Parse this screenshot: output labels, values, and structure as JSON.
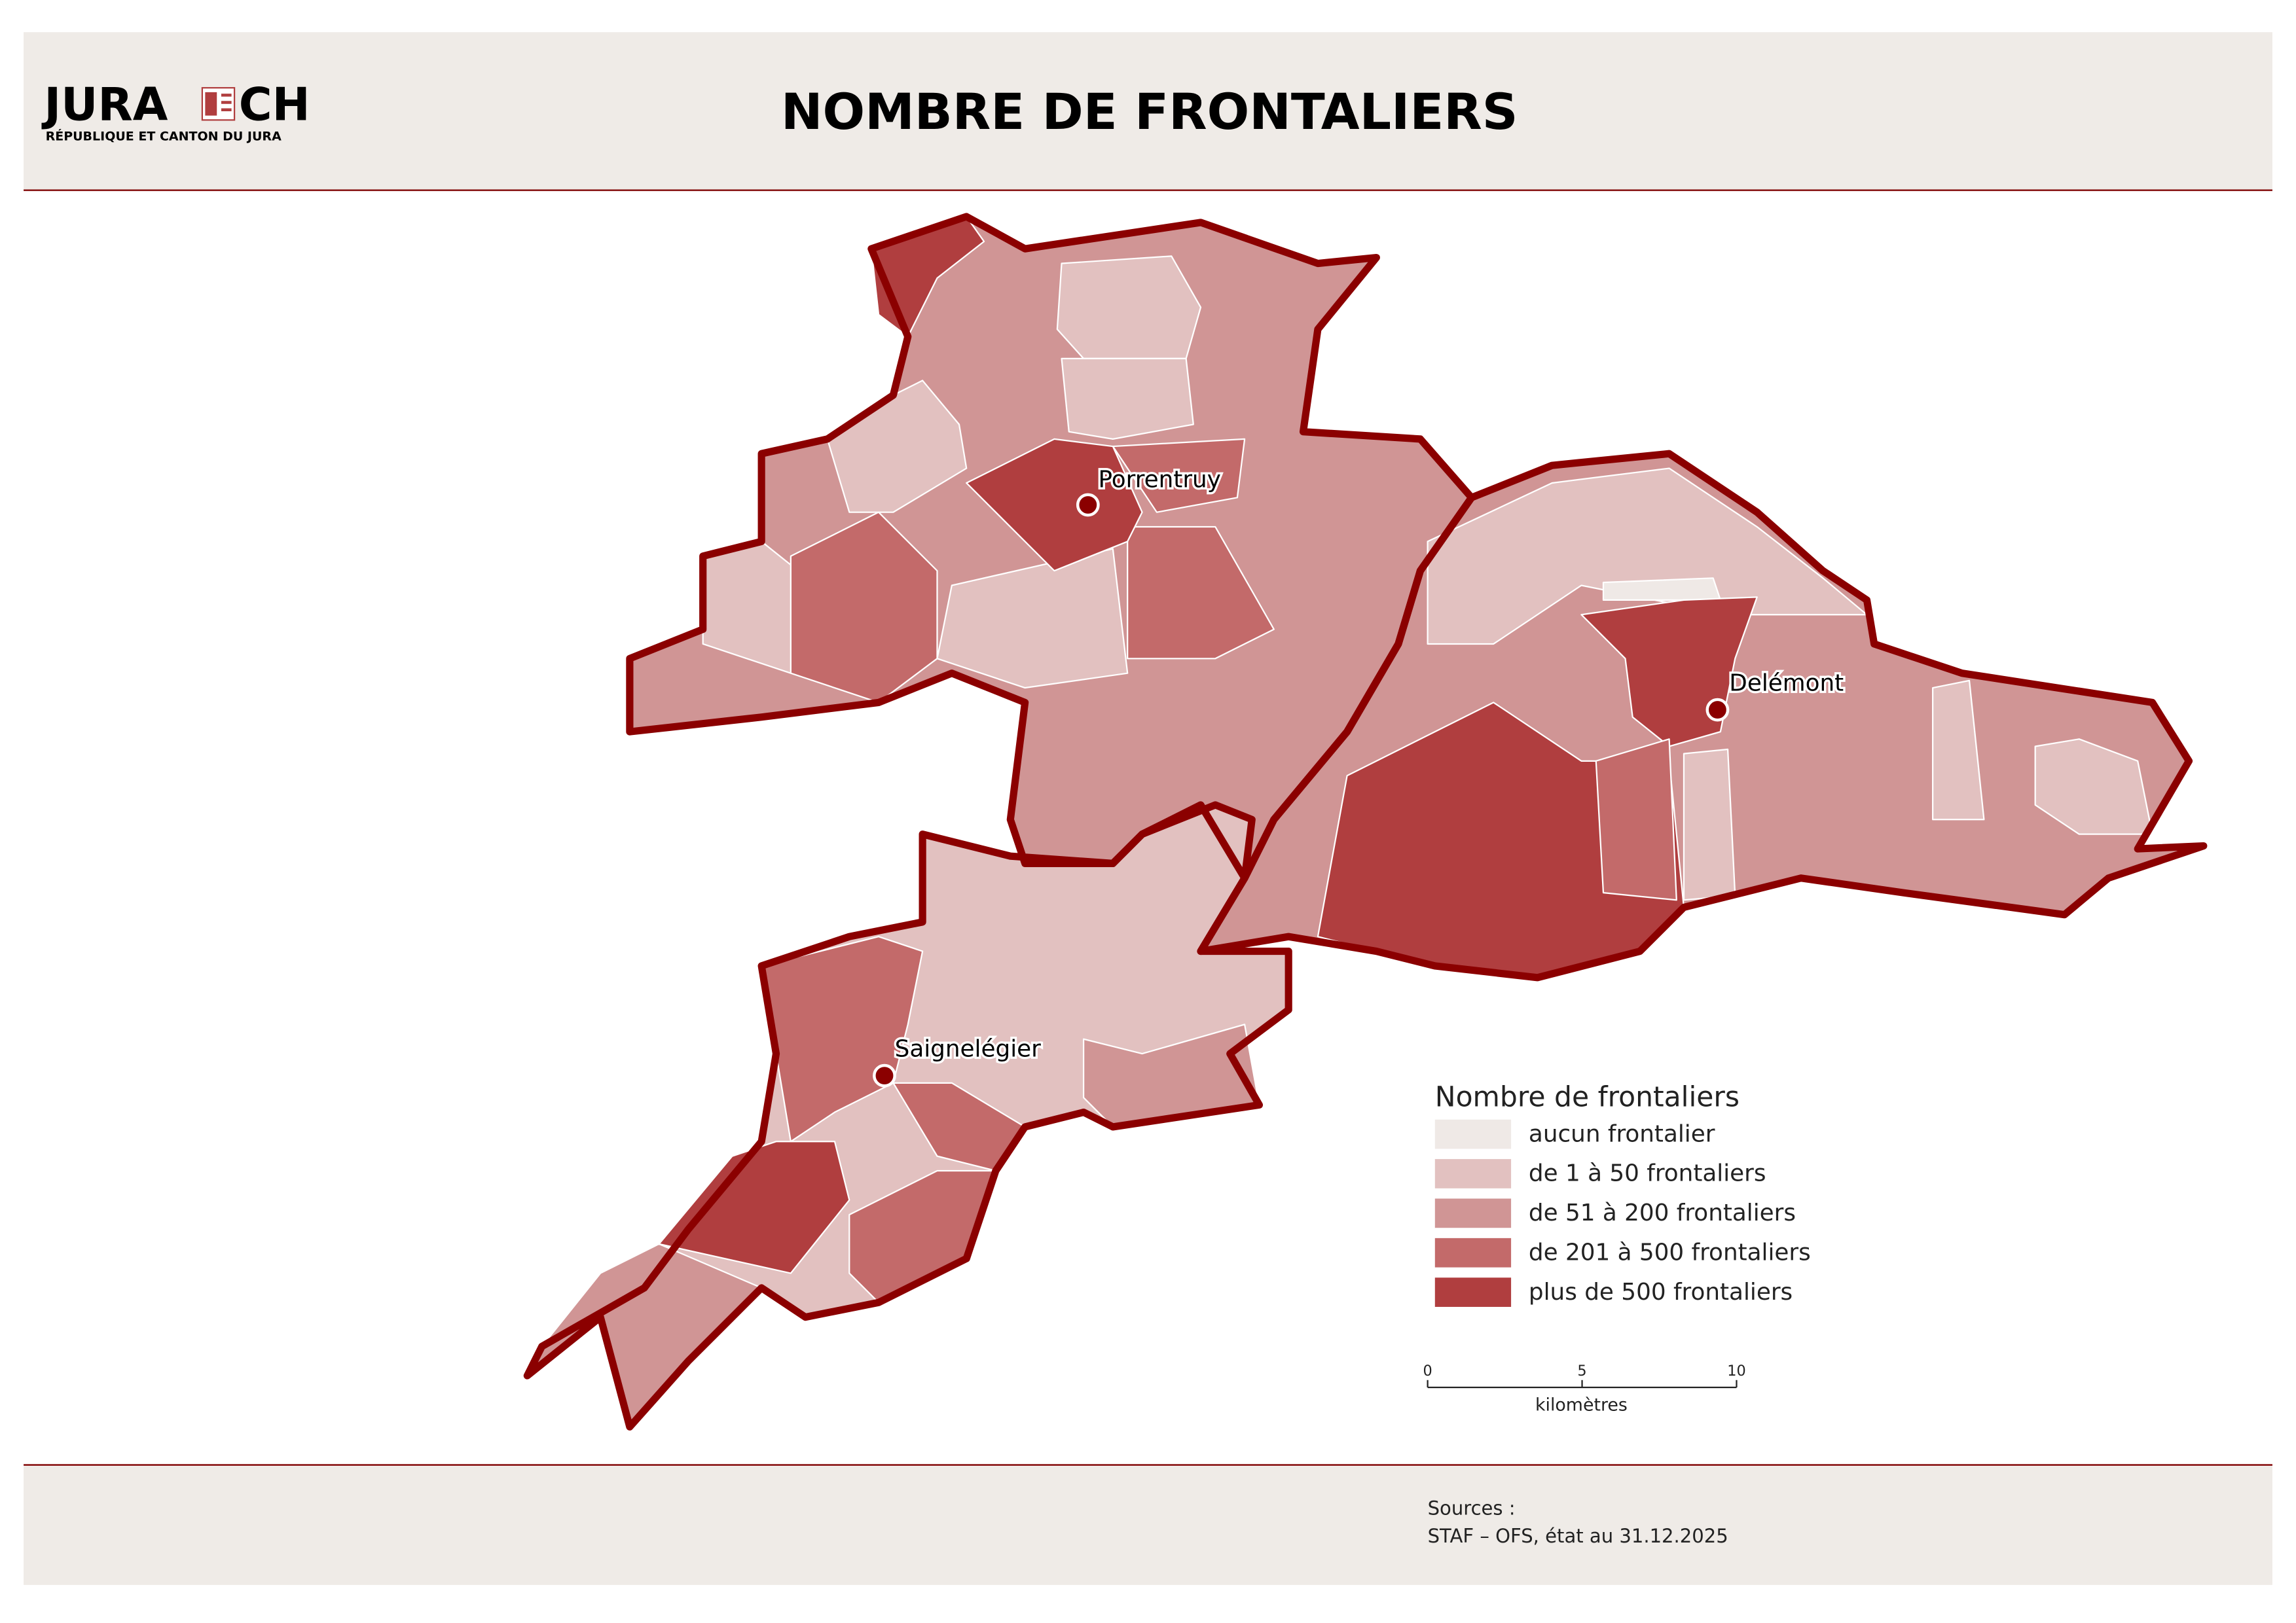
{
  "header": {
    "logo_left": "JURA",
    "logo_right": "CH",
    "logo_subtitle": "RÉPUBLIQUE ET CANTON DU JURA",
    "title": "NOMBRE DE FRONTALIERS"
  },
  "map": {
    "border_color": "#8b0000",
    "places": [
      {
        "name": "Porrentruy"
      },
      {
        "name": "Delémont"
      },
      {
        "name": "Saignelégier"
      }
    ]
  },
  "legend": {
    "title": "Nombre de frontaliers",
    "classes": [
      {
        "label": "aucun frontalier",
        "color": "#efe9e6"
      },
      {
        "label": "de 1 à 50 frontaliers",
        "color": "#e2c1c0"
      },
      {
        "label": "de 51 à 200 frontaliers",
        "color": "#d09595"
      },
      {
        "label": "de 201 à 500 frontaliers",
        "color": "#c36a6a"
      },
      {
        "label": "plus de 500 frontaliers",
        "color": "#b03e3f"
      }
    ]
  },
  "scale_bar": {
    "ticks": [
      0,
      5,
      10
    ],
    "unit": "kilomètres"
  },
  "footer": {
    "sources_title": "Sources :",
    "sources": "STAF – OFS, état au 31.12.2025"
  }
}
